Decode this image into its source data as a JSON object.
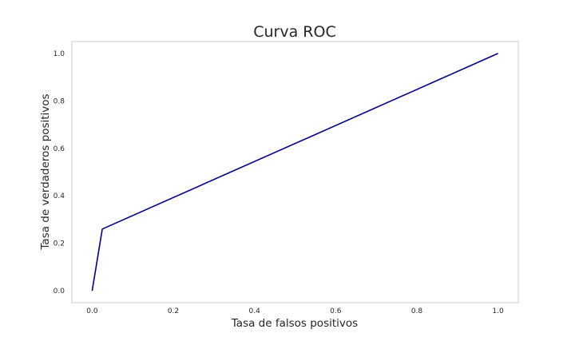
{
  "chart_data": {
    "type": "line",
    "title": "Curva ROC",
    "xlabel": "Tasa de falsos positivos",
    "ylabel": "Tasa de verdaderos positivos",
    "xlim": [
      -0.05,
      1.05
    ],
    "ylim": [
      -0.05,
      1.05
    ],
    "xticks": [
      0.0,
      0.2,
      0.4,
      0.6,
      0.8,
      1.0
    ],
    "yticks": [
      0.0,
      0.2,
      0.4,
      0.6,
      0.8,
      1.0
    ],
    "xtick_labels": [
      "0.0",
      "0.2",
      "0.4",
      "0.6",
      "0.8",
      "1.0"
    ],
    "ytick_labels": [
      "0.0",
      "0.2",
      "0.4",
      "0.6",
      "0.8",
      "1.0"
    ],
    "grid": false,
    "series": [
      {
        "x": [
          0.0,
          0.025,
          1.0
        ],
        "y": [
          0.0,
          0.26,
          1.0
        ],
        "color": "#00008b"
      }
    ]
  }
}
